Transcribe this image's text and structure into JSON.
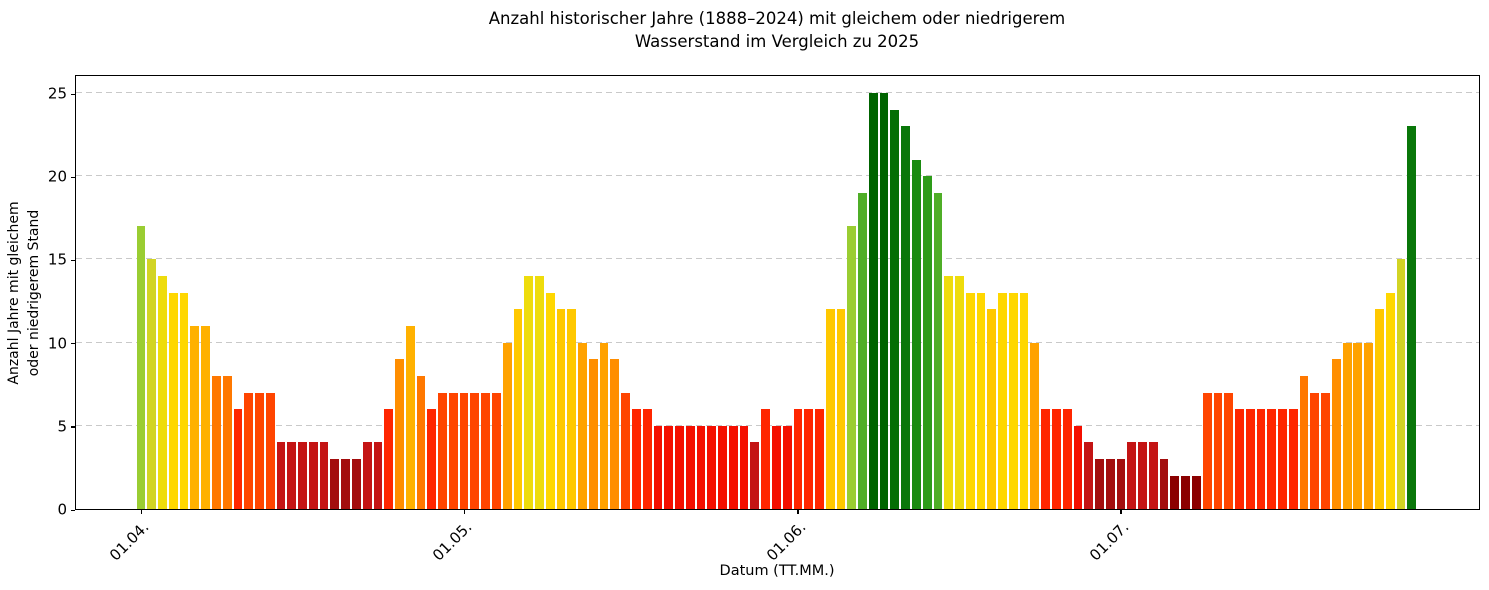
{
  "title": {
    "line1": "Anzahl historischer Jahre (1888–2024) mit gleichem oder niedrigerem",
    "line2": "Wasserstand im Vergleich zu 2025"
  },
  "chart_data": {
    "type": "bar",
    "title": "Anzahl historischer Jahre (1888–2024) mit gleichem oder niedrigerem Wasserstand im Vergleich zu 2025",
    "title_line1": "Anzahl historischer Jahre (1888–2024) mit gleichem oder niedrigerem",
    "title_line2": "Wasserstand im Vergleich zu 2025",
    "xlabel": "Datum (TT.MM.)",
    "ylabel_line1": "Anzahl Jahre mit gleichem",
    "ylabel_line2": "oder niedrigerem Stand",
    "ylim": [
      0,
      25
    ],
    "y_ticks": [
      0,
      5,
      10,
      15,
      20,
      25
    ],
    "grid": "horizontal-dashed",
    "legend": "none",
    "x_tick_labels": [
      "01.04.",
      "01.05.",
      "01.06.",
      "01.07."
    ],
    "months": [
      {
        "tick_label": "01.04.",
        "values": [
          17,
          15,
          14,
          13,
          13,
          11,
          11,
          8,
          8,
          6,
          7,
          7,
          7,
          4,
          4,
          4,
          4,
          4,
          3,
          3,
          3,
          4,
          4,
          6,
          9,
          11,
          8,
          6,
          7,
          7
        ]
      },
      {
        "tick_label": "01.05.",
        "values": [
          7,
          7,
          7,
          7,
          10,
          12,
          14,
          14,
          13,
          12,
          12,
          10,
          9,
          10,
          9,
          7,
          6,
          6,
          5,
          5,
          5,
          5,
          5,
          5,
          5,
          5,
          5,
          4,
          6,
          5,
          5
        ]
      },
      {
        "tick_label": "01.06.",
        "values": [
          6,
          6,
          6,
          12,
          12,
          17,
          19,
          25,
          25,
          24,
          23,
          21,
          20,
          19,
          14,
          14,
          13,
          13,
          12,
          13,
          13,
          13,
          10,
          6,
          6,
          6,
          5,
          4,
          3,
          3
        ]
      },
      {
        "tick_label": "01.07.",
        "values": [
          3,
          4,
          4,
          4,
          3,
          2,
          2,
          2,
          7,
          7,
          7,
          6,
          6,
          6,
          6,
          6,
          6,
          8,
          7,
          7,
          9,
          10,
          10,
          10,
          12,
          13,
          15,
          23
        ]
      }
    ],
    "color_by_value": {
      "2": "#8b0000",
      "3": "#a30d0d",
      "4": "#c41414",
      "5": "#f40f00",
      "6": "#ff2600",
      "7": "#ff4500",
      "8": "#ff7800",
      "9": "#ff8e00",
      "10": "#ffa200",
      "11": "#ffb100",
      "12": "#ffc800",
      "13": "#ffd700",
      "14": "#eedc0c",
      "15": "#d2d424",
      "17": "#9acd32",
      "19": "#4fae27",
      "20": "#2d9c19",
      "21": "#1a8a10",
      "23": "#097709",
      "24": "#046e04",
      "25": "#006400"
    },
    "colors": {
      "gridline": "#c9c9c9",
      "axis": "#000000",
      "background": "#ffffff"
    }
  }
}
